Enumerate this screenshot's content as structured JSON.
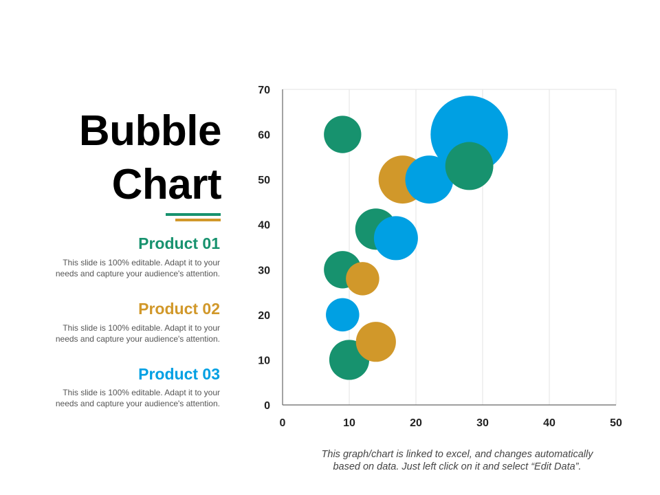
{
  "title": {
    "line1": "Bubble",
    "line2": "Chart"
  },
  "colors": {
    "green": "#17926E",
    "orange": "#D1982A",
    "blue": "#00A0E3",
    "text": "#555555"
  },
  "products": [
    {
      "name": "Product 01",
      "color": "#17926E",
      "desc1": "This slide is 100% editable. Adapt it to your",
      "desc2": "needs and capture your audience's attention."
    },
    {
      "name": "Product 02",
      "color": "#D1982A",
      "desc1": "This slide is 100% editable. Adapt it to your",
      "desc2": "needs and capture your audience's attention."
    },
    {
      "name": "Product 03",
      "color": "#00A0E3",
      "desc1": "This slide is 100% editable. Adapt it to your",
      "desc2": "needs and capture your audience's attention."
    }
  ],
  "note": {
    "line1": "This graph/chart is linked to excel, and changes automatically",
    "line2": "based on data. Just left click on it and select “Edit Data”."
  },
  "chart_data": {
    "type": "bubble",
    "title": "",
    "xlabel": "",
    "ylabel": "",
    "xlim": [
      0,
      50
    ],
    "ylim": [
      0,
      70
    ],
    "xticks": [
      0,
      10,
      20,
      30,
      40,
      50
    ],
    "yticks": [
      0,
      10,
      20,
      30,
      40,
      50,
      60,
      70
    ],
    "grid": "vertical",
    "series": [
      {
        "name": "Product 01",
        "color": "#17926E",
        "points": [
          {
            "x": 9,
            "y": 60,
            "size": 2.8
          },
          {
            "x": 14,
            "y": 39,
            "size": 3.1
          },
          {
            "x": 9,
            "y": 30,
            "size": 2.8
          },
          {
            "x": 10,
            "y": 10,
            "size": 3.0
          },
          {
            "x": 28,
            "y": 53,
            "size": 3.6
          }
        ]
      },
      {
        "name": "Product 02",
        "color": "#D1982A",
        "points": [
          {
            "x": 18,
            "y": 50,
            "size": 3.6
          },
          {
            "x": 12,
            "y": 28,
            "size": 2.5
          },
          {
            "x": 14,
            "y": 14,
            "size": 3.0
          }
        ]
      },
      {
        "name": "Product 03",
        "color": "#00A0E3",
        "points": [
          {
            "x": 28,
            "y": 60,
            "size": 5.8
          },
          {
            "x": 22,
            "y": 50,
            "size": 3.6
          },
          {
            "x": 17,
            "y": 37,
            "size": 3.3
          },
          {
            "x": 9,
            "y": 20,
            "size": 2.5
          }
        ]
      }
    ]
  }
}
